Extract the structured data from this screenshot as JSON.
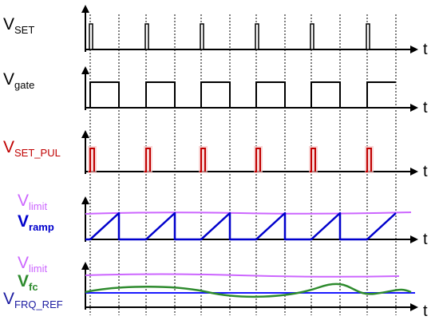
{
  "signals": [
    {
      "symbol": "V",
      "subscript": "SET"
    },
    {
      "symbol": "V",
      "subscript": "gate"
    },
    {
      "symbol": "V",
      "subscript": "SET_PUL"
    },
    {
      "symbol": "V",
      "subscript": "limit"
    },
    {
      "symbol": "V",
      "subscript": "ramp"
    },
    {
      "symbol": "V",
      "subscript": "limit"
    },
    {
      "symbol": "V",
      "subscript": "fc"
    },
    {
      "symbol": "V",
      "subscript": "FRQ_REF"
    }
  ],
  "time_labels": [
    "t",
    "t",
    "t",
    "t",
    "t"
  ]
}
